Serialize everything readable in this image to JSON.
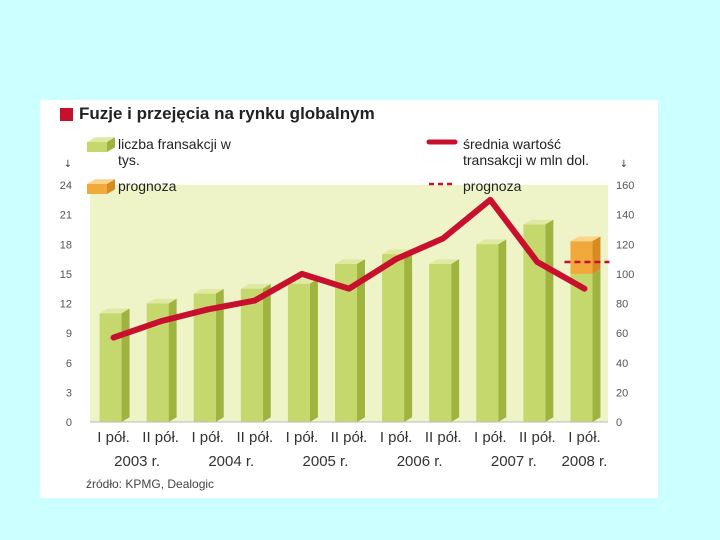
{
  "colors": {
    "background": "#ccffff",
    "bar_front": "#c5d86d",
    "bar_top": "#dfe9a3",
    "bar_side": "#9fb33f",
    "forecast_front": "#f2a93b",
    "forecast_top": "#fbd48a",
    "forecast_side": "#d68a1f",
    "line": "#c8102e",
    "plot_bg": "#eef4c8"
  },
  "title": "Fuzje i przejęcia na rynku globalnym",
  "legend": {
    "bars_label": "liczba fransakcji w tys.",
    "forecast_bar_label": "prognoza",
    "line_label": "średnia wartość transakcji w mln dol.",
    "forecast_line_label": "prognoza"
  },
  "source": "źródło: KPMG, Dealogic",
  "chart_data": {
    "type": "bar",
    "categories": [
      "I pół.",
      "II pół.",
      "I pół.",
      "II pół.",
      "I pół.",
      "II pół.",
      "I pół.",
      "II pół.",
      "I pół.",
      "II pół.",
      "I pół."
    ],
    "year_labels": [
      "2003 r.",
      "2004 r.",
      "2005 r.",
      "2006 r.",
      "2007 r.",
      "2008 r."
    ],
    "series": [
      {
        "name": "liczba fransakcji w tys.",
        "type": "bar",
        "axis": "left",
        "values": [
          11,
          12,
          13,
          13.5,
          14,
          16,
          17,
          16,
          18,
          20,
          15
        ],
        "forecast_value_last": 18.3
      },
      {
        "name": "średnia wartość transakcji w mln dol.",
        "type": "line",
        "axis": "right",
        "values": [
          57,
          68,
          76,
          82,
          100,
          90,
          110,
          124,
          150,
          108,
          90
        ],
        "forecast_value_last": 108
      }
    ],
    "y_left": {
      "ticks": [
        0,
        3,
        6,
        9,
        12,
        15,
        18,
        21,
        24
      ],
      "range": [
        0,
        24
      ]
    },
    "y_right": {
      "ticks": [
        0,
        20,
        40,
        60,
        80,
        100,
        120,
        140,
        160
      ],
      "range": [
        0,
        160
      ]
    },
    "grid": false
  }
}
